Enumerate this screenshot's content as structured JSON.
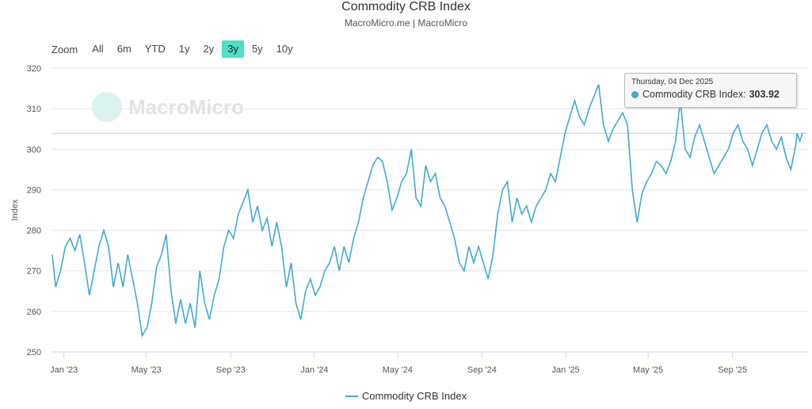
{
  "header": {
    "title": "Commodity CRB Index",
    "subtitle": "MacroMicro.me | MacroMicro"
  },
  "zoom": {
    "label": "Zoom",
    "buttons": [
      "All",
      "6m",
      "YTD",
      "1y",
      "2y",
      "3y",
      "5y",
      "10y"
    ],
    "active": "3y"
  },
  "watermark": {
    "text": "MacroMicro"
  },
  "tooltip": {
    "date": "Thursday, 04 Dec 2025",
    "series": "Commodity CRB Index:",
    "value": "303.92"
  },
  "legend": {
    "label": "Commodity CRB Index"
  },
  "colors": {
    "series": "#3fa9d6",
    "active_button": "#4fe0c5"
  },
  "chart_data": {
    "type": "line",
    "ylabel": "Index",
    "ylim": [
      250,
      320
    ],
    "yticks": [
      250,
      260,
      270,
      280,
      290,
      300,
      310,
      320
    ],
    "xlim": [
      "2022-12-15",
      "2025-12-20"
    ],
    "xticks": [
      {
        "date": "2023-01-01",
        "label": "Jan '23"
      },
      {
        "date": "2023-05-01",
        "label": "May '23"
      },
      {
        "date": "2023-09-01",
        "label": "Sep '23"
      },
      {
        "date": "2024-01-01",
        "label": "Jan '24"
      },
      {
        "date": "2024-05-01",
        "label": "May '24"
      },
      {
        "date": "2024-09-01",
        "label": "Sep '24"
      },
      {
        "date": "2025-01-01",
        "label": "Jan '25"
      },
      {
        "date": "2025-05-01",
        "label": "May '25"
      },
      {
        "date": "2025-09-01",
        "label": "Sep '25"
      }
    ],
    "grid": true,
    "legend_position": "bottom",
    "crosshair_y": 303.92,
    "series": [
      {
        "name": "Commodity CRB Index",
        "points": [
          [
            "2022-12-15",
            274
          ],
          [
            "2022-12-20",
            266
          ],
          [
            "2022-12-27",
            270
          ],
          [
            "2023-01-03",
            276
          ],
          [
            "2023-01-10",
            278
          ],
          [
            "2023-01-17",
            275
          ],
          [
            "2023-01-24",
            279
          ],
          [
            "2023-01-31",
            272
          ],
          [
            "2023-02-07",
            264
          ],
          [
            "2023-02-14",
            270
          ],
          [
            "2023-02-21",
            276
          ],
          [
            "2023-02-28",
            280
          ],
          [
            "2023-03-07",
            276
          ],
          [
            "2023-03-14",
            266
          ],
          [
            "2023-03-21",
            272
          ],
          [
            "2023-03-28",
            266
          ],
          [
            "2023-04-04",
            274
          ],
          [
            "2023-04-11",
            268
          ],
          [
            "2023-04-18",
            262
          ],
          [
            "2023-04-25",
            254
          ],
          [
            "2023-05-02",
            256
          ],
          [
            "2023-05-09",
            262
          ],
          [
            "2023-05-16",
            271
          ],
          [
            "2023-05-23",
            274
          ],
          [
            "2023-05-30",
            279
          ],
          [
            "2023-06-06",
            265
          ],
          [
            "2023-06-13",
            257
          ],
          [
            "2023-06-20",
            263
          ],
          [
            "2023-06-27",
            257
          ],
          [
            "2023-07-04",
            262
          ],
          [
            "2023-07-11",
            256
          ],
          [
            "2023-07-18",
            270
          ],
          [
            "2023-07-25",
            262
          ],
          [
            "2023-08-01",
            258
          ],
          [
            "2023-08-08",
            264
          ],
          [
            "2023-08-15",
            268
          ],
          [
            "2023-08-22",
            276
          ],
          [
            "2023-08-29",
            280
          ],
          [
            "2023-09-05",
            278
          ],
          [
            "2023-09-12",
            284
          ],
          [
            "2023-09-19",
            287
          ],
          [
            "2023-09-26",
            290
          ],
          [
            "2023-10-03",
            282
          ],
          [
            "2023-10-10",
            286
          ],
          [
            "2023-10-17",
            280
          ],
          [
            "2023-10-24",
            283
          ],
          [
            "2023-10-31",
            276
          ],
          [
            "2023-11-07",
            282
          ],
          [
            "2023-11-14",
            276
          ],
          [
            "2023-11-21",
            266
          ],
          [
            "2023-11-28",
            272
          ],
          [
            "2023-12-05",
            262
          ],
          [
            "2023-12-12",
            258
          ],
          [
            "2023-12-19",
            265
          ],
          [
            "2023-12-26",
            268
          ],
          [
            "2024-01-02",
            264
          ],
          [
            "2024-01-09",
            266
          ],
          [
            "2024-01-16",
            270
          ],
          [
            "2024-01-23",
            272
          ],
          [
            "2024-01-30",
            276
          ],
          [
            "2024-02-06",
            270
          ],
          [
            "2024-02-13",
            276
          ],
          [
            "2024-02-20",
            272
          ],
          [
            "2024-02-27",
            278
          ],
          [
            "2024-03-05",
            282
          ],
          [
            "2024-03-12",
            288
          ],
          [
            "2024-03-19",
            292
          ],
          [
            "2024-03-26",
            296
          ],
          [
            "2024-04-02",
            298
          ],
          [
            "2024-04-09",
            297
          ],
          [
            "2024-04-16",
            292
          ],
          [
            "2024-04-23",
            285
          ],
          [
            "2024-04-30",
            288
          ],
          [
            "2024-05-07",
            292
          ],
          [
            "2024-05-14",
            294
          ],
          [
            "2024-05-21",
            300
          ],
          [
            "2024-05-28",
            288
          ],
          [
            "2024-06-04",
            286
          ],
          [
            "2024-06-11",
            296
          ],
          [
            "2024-06-18",
            292
          ],
          [
            "2024-06-25",
            294
          ],
          [
            "2024-07-02",
            288
          ],
          [
            "2024-07-09",
            286
          ],
          [
            "2024-07-16",
            282
          ],
          [
            "2024-07-23",
            278
          ],
          [
            "2024-07-30",
            272
          ],
          [
            "2024-08-06",
            270
          ],
          [
            "2024-08-13",
            276
          ],
          [
            "2024-08-20",
            272
          ],
          [
            "2024-08-27",
            276
          ],
          [
            "2024-09-03",
            272
          ],
          [
            "2024-09-10",
            268
          ],
          [
            "2024-09-17",
            274
          ],
          [
            "2024-09-24",
            284
          ],
          [
            "2024-10-01",
            290
          ],
          [
            "2024-10-08",
            292
          ],
          [
            "2024-10-15",
            282
          ],
          [
            "2024-10-22",
            288
          ],
          [
            "2024-10-29",
            284
          ],
          [
            "2024-11-05",
            286
          ],
          [
            "2024-11-12",
            282
          ],
          [
            "2024-11-19",
            286
          ],
          [
            "2024-11-26",
            288
          ],
          [
            "2024-12-03",
            290
          ],
          [
            "2024-12-10",
            294
          ],
          [
            "2024-12-17",
            292
          ],
          [
            "2024-12-24",
            298
          ],
          [
            "2024-12-31",
            304
          ],
          [
            "2025-01-07",
            308
          ],
          [
            "2025-01-14",
            312
          ],
          [
            "2025-01-21",
            308
          ],
          [
            "2025-01-28",
            306
          ],
          [
            "2025-02-04",
            310
          ],
          [
            "2025-02-11",
            313
          ],
          [
            "2025-02-18",
            316
          ],
          [
            "2025-02-25",
            306
          ],
          [
            "2025-03-04",
            302
          ],
          [
            "2025-03-11",
            305
          ],
          [
            "2025-03-18",
            307
          ],
          [
            "2025-03-25",
            309
          ],
          [
            "2025-04-01",
            306
          ],
          [
            "2025-04-08",
            290
          ],
          [
            "2025-04-15",
            282
          ],
          [
            "2025-04-22",
            289
          ],
          [
            "2025-04-29",
            292
          ],
          [
            "2025-05-06",
            294
          ],
          [
            "2025-05-13",
            297
          ],
          [
            "2025-05-20",
            296
          ],
          [
            "2025-05-27",
            294
          ],
          [
            "2025-06-03",
            297
          ],
          [
            "2025-06-10",
            302
          ],
          [
            "2025-06-17",
            312
          ],
          [
            "2025-06-24",
            300
          ],
          [
            "2025-07-01",
            298
          ],
          [
            "2025-07-08",
            303
          ],
          [
            "2025-07-15",
            306
          ],
          [
            "2025-07-22",
            302
          ],
          [
            "2025-07-29",
            298
          ],
          [
            "2025-08-05",
            294
          ],
          [
            "2025-08-12",
            296
          ],
          [
            "2025-08-19",
            298
          ],
          [
            "2025-08-26",
            300
          ],
          [
            "2025-09-02",
            304
          ],
          [
            "2025-09-09",
            306
          ],
          [
            "2025-09-16",
            302
          ],
          [
            "2025-09-23",
            300
          ],
          [
            "2025-09-30",
            296
          ],
          [
            "2025-10-07",
            300
          ],
          [
            "2025-10-14",
            304
          ],
          [
            "2025-10-21",
            306
          ],
          [
            "2025-10-28",
            302
          ],
          [
            "2025-11-04",
            300
          ],
          [
            "2025-11-11",
            303
          ],
          [
            "2025-11-18",
            298
          ],
          [
            "2025-11-25",
            295
          ],
          [
            "2025-12-02",
            301
          ],
          [
            "2025-12-04",
            303.92
          ],
          [
            "2025-12-08",
            302
          ],
          [
            "2025-12-12",
            304
          ]
        ]
      }
    ]
  }
}
